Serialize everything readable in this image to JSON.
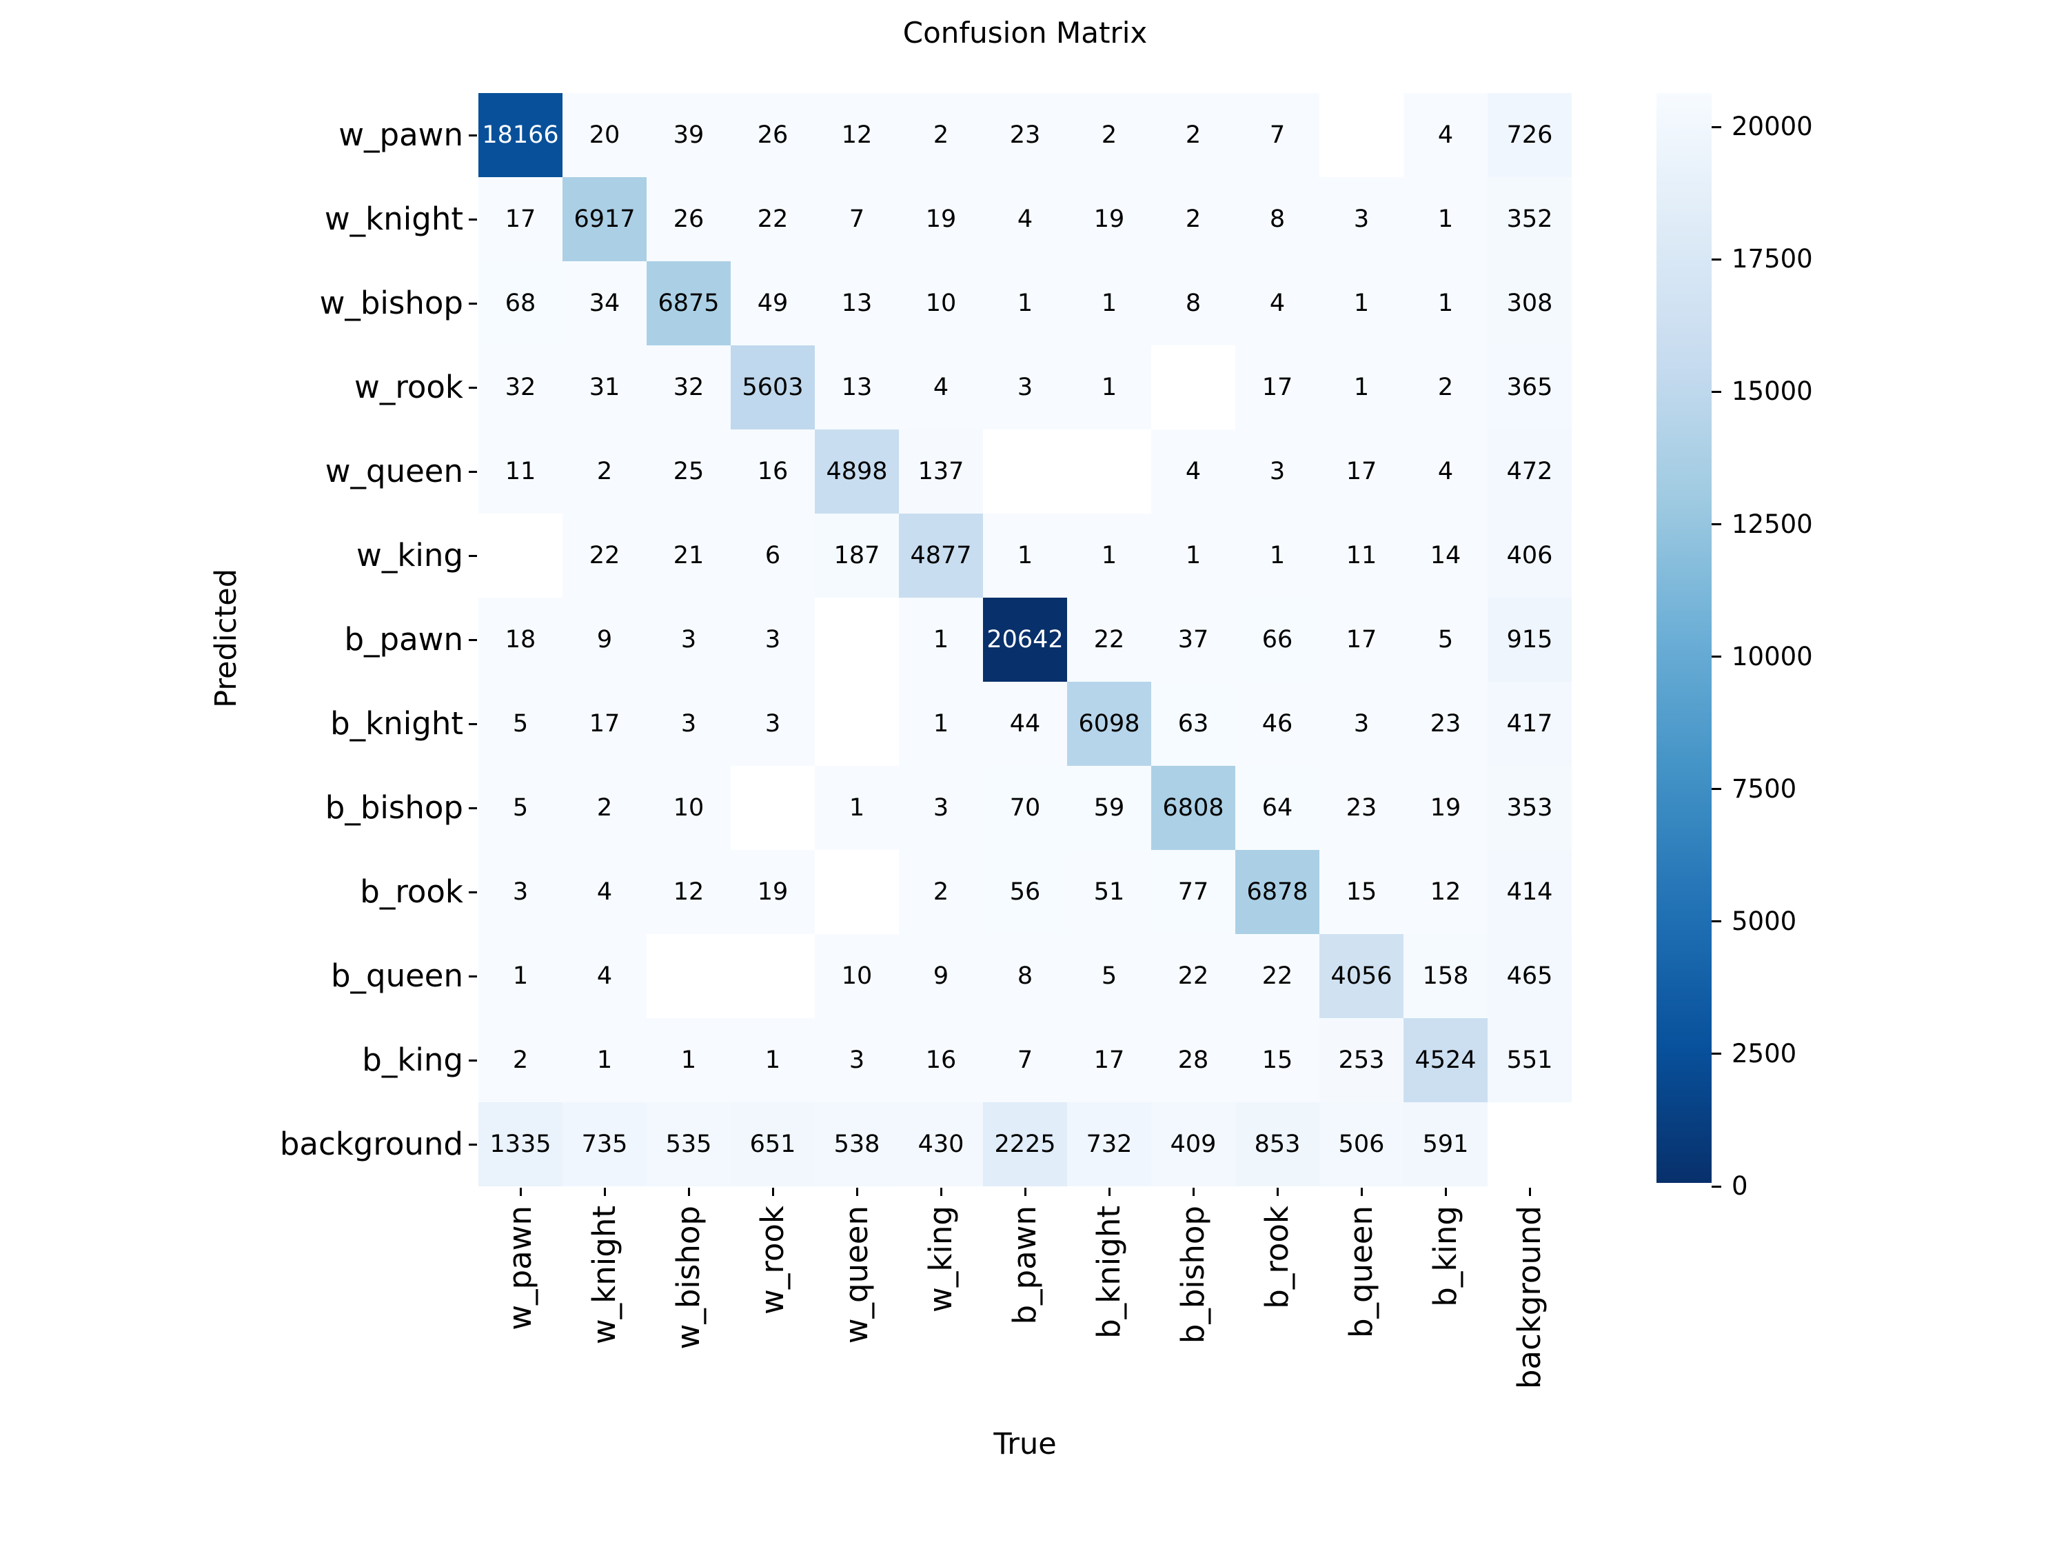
{
  "title": "Confusion Matrix",
  "chart_data": {
    "type": "heatmap",
    "title": "Confusion Matrix",
    "xlabel": "True",
    "ylabel": "Predicted",
    "x_categories": [
      "w_pawn",
      "w_knight",
      "w_bishop",
      "w_rook",
      "w_queen",
      "w_king",
      "b_pawn",
      "b_knight",
      "b_bishop",
      "b_rook",
      "b_queen",
      "b_king",
      "background"
    ],
    "y_categories": [
      "w_pawn",
      "w_knight",
      "w_bishop",
      "w_rook",
      "w_queen",
      "w_king",
      "b_pawn",
      "b_knight",
      "b_bishop",
      "b_rook",
      "b_queen",
      "b_king",
      "background"
    ],
    "matrix": [
      [
        18166,
        20,
        39,
        26,
        12,
        2,
        23,
        2,
        2,
        7,
        null,
        4,
        726
      ],
      [
        17,
        6917,
        26,
        22,
        7,
        19,
        4,
        19,
        2,
        8,
        3,
        1,
        352
      ],
      [
        68,
        34,
        6875,
        49,
        13,
        10,
        1,
        1,
        8,
        4,
        1,
        1,
        308
      ],
      [
        32,
        31,
        32,
        5603,
        13,
        4,
        3,
        1,
        null,
        17,
        1,
        2,
        365
      ],
      [
        11,
        2,
        25,
        16,
        4898,
        137,
        null,
        null,
        4,
        3,
        17,
        4,
        472
      ],
      [
        null,
        22,
        21,
        6,
        187,
        4877,
        1,
        1,
        1,
        1,
        11,
        14,
        406
      ],
      [
        18,
        9,
        3,
        3,
        null,
        1,
        20642,
        22,
        37,
        66,
        17,
        5,
        915
      ],
      [
        5,
        17,
        3,
        3,
        null,
        1,
        44,
        6098,
        63,
        46,
        3,
        23,
        417
      ],
      [
        5,
        2,
        10,
        null,
        1,
        3,
        70,
        59,
        6808,
        64,
        23,
        19,
        353
      ],
      [
        3,
        4,
        12,
        19,
        null,
        2,
        56,
        51,
        77,
        6878,
        15,
        12,
        414
      ],
      [
        1,
        4,
        null,
        null,
        10,
        9,
        8,
        5,
        22,
        22,
        4056,
        158,
        465
      ],
      [
        2,
        1,
        1,
        1,
        3,
        16,
        7,
        17,
        28,
        15,
        253,
        4524,
        551
      ],
      [
        1335,
        735,
        535,
        651,
        538,
        430,
        2225,
        732,
        409,
        853,
        506,
        591,
        null
      ]
    ],
    "vmin": 0,
    "vmax": 20642,
    "colormap": "Blues",
    "colorbar_ticks": [
      0,
      2500,
      5000,
      7500,
      10000,
      12500,
      15000,
      17500,
      20000
    ],
    "legend_position": "right",
    "grid": false
  },
  "colors": {
    "background": "#ffffff",
    "text": "#000000",
    "annotation_light": "#ffffff",
    "nan_cell": "#ffffff",
    "blues_anchors": [
      "#f7fbff",
      "#deebf7",
      "#c6dbef",
      "#9ecae1",
      "#6baed6",
      "#4292c6",
      "#2171b5",
      "#08519c",
      "#08306b"
    ]
  }
}
